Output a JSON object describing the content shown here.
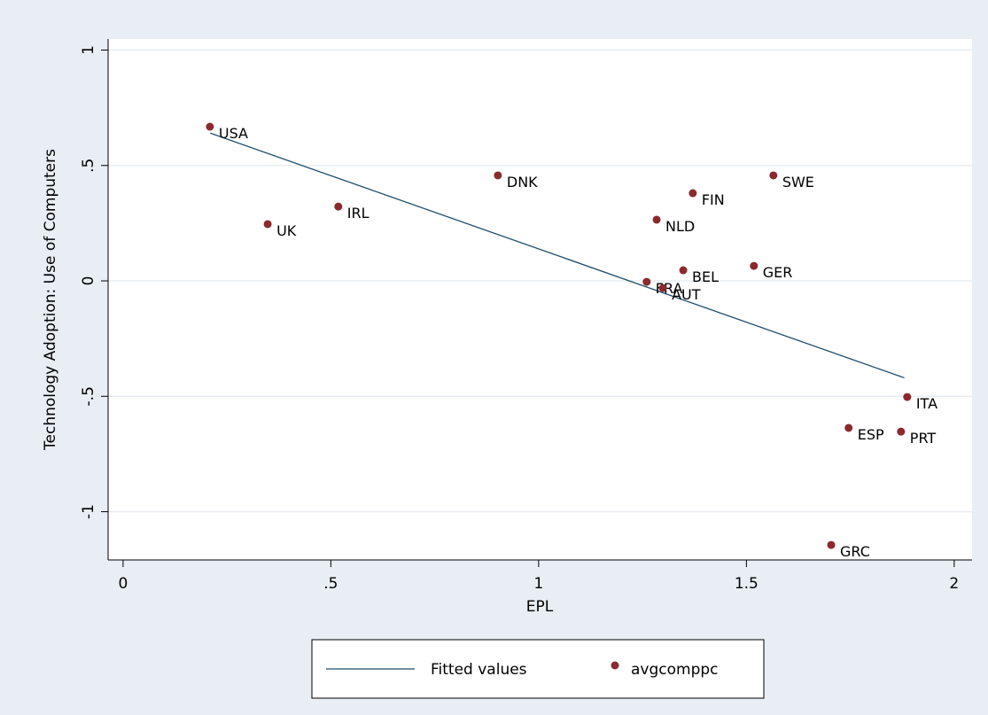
{
  "chart_data": {
    "type": "scatter",
    "xlabel": "EPL",
    "ylabel": "Technology Adoption: Use of Computers",
    "xlim": [
      -0.036,
      2.043
    ],
    "ylim": [
      -1.209,
      1.048
    ],
    "xticks": [
      0,
      {
        "value": 0.5,
        "label": ".5"
      },
      1,
      1.5,
      2
    ],
    "yticks": [
      -1,
      {
        "value": -0.5,
        "label": "-.5"
      },
      0,
      {
        "value": 0.5,
        "label": ".5"
      },
      1
    ],
    "grid": true,
    "legend": "bottom",
    "series": [
      {
        "name": "Fitted values",
        "type": "line",
        "color": "#1f4e6b",
        "x": [
          0.21,
          1.88
        ],
        "values": [
          0.64,
          -0.42
        ]
      },
      {
        "name": "avgcomppc",
        "type": "scatter",
        "color": "#8b2a2e",
        "x": [
          0.209,
          0.348,
          0.518,
          0.902,
          1.371,
          1.284,
          1.565,
          1.518,
          1.348,
          1.26,
          1.299,
          1.887,
          1.746,
          1.872,
          1.704
        ],
        "values": [
          0.668,
          0.246,
          0.322,
          0.457,
          0.38,
          0.265,
          0.457,
          0.065,
          0.046,
          -0.004,
          -0.031,
          -0.503,
          -0.637,
          -0.653,
          -1.144
        ],
        "point_labels": [
          "USA",
          "UK",
          "IRL",
          "DNK",
          "FIN",
          "NLD",
          "SWE",
          "GER",
          "BEL",
          "FRA",
          "AUT",
          "ITA",
          "ESP",
          "PRT",
          "GRC"
        ]
      }
    ]
  }
}
